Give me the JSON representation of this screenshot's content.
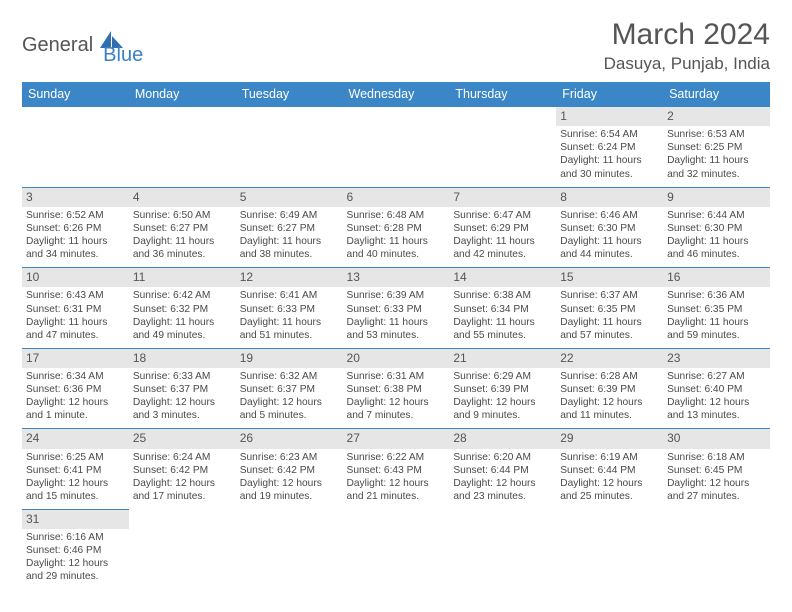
{
  "brand": {
    "word1": "General",
    "word2": "Blue"
  },
  "title": "March 2024",
  "location": "Dasuya, Punjab, India",
  "colors": {
    "header_bg": "#3b86c7",
    "daynum_bg": "#e6e6e6",
    "text": "#4a4a4a",
    "border": "#3b86c7"
  },
  "dayHeaders": [
    "Sunday",
    "Monday",
    "Tuesday",
    "Wednesday",
    "Thursday",
    "Friday",
    "Saturday"
  ],
  "weeks": [
    [
      null,
      null,
      null,
      null,
      null,
      {
        "n": "1",
        "sunrise": "Sunrise: 6:54 AM",
        "sunset": "Sunset: 6:24 PM",
        "daylight": "Daylight: 11 hours and 30 minutes."
      },
      {
        "n": "2",
        "sunrise": "Sunrise: 6:53 AM",
        "sunset": "Sunset: 6:25 PM",
        "daylight": "Daylight: 11 hours and 32 minutes."
      }
    ],
    [
      {
        "n": "3",
        "sunrise": "Sunrise: 6:52 AM",
        "sunset": "Sunset: 6:26 PM",
        "daylight": "Daylight: 11 hours and 34 minutes."
      },
      {
        "n": "4",
        "sunrise": "Sunrise: 6:50 AM",
        "sunset": "Sunset: 6:27 PM",
        "daylight": "Daylight: 11 hours and 36 minutes."
      },
      {
        "n": "5",
        "sunrise": "Sunrise: 6:49 AM",
        "sunset": "Sunset: 6:27 PM",
        "daylight": "Daylight: 11 hours and 38 minutes."
      },
      {
        "n": "6",
        "sunrise": "Sunrise: 6:48 AM",
        "sunset": "Sunset: 6:28 PM",
        "daylight": "Daylight: 11 hours and 40 minutes."
      },
      {
        "n": "7",
        "sunrise": "Sunrise: 6:47 AM",
        "sunset": "Sunset: 6:29 PM",
        "daylight": "Daylight: 11 hours and 42 minutes."
      },
      {
        "n": "8",
        "sunrise": "Sunrise: 6:46 AM",
        "sunset": "Sunset: 6:30 PM",
        "daylight": "Daylight: 11 hours and 44 minutes."
      },
      {
        "n": "9",
        "sunrise": "Sunrise: 6:44 AM",
        "sunset": "Sunset: 6:30 PM",
        "daylight": "Daylight: 11 hours and 46 minutes."
      }
    ],
    [
      {
        "n": "10",
        "sunrise": "Sunrise: 6:43 AM",
        "sunset": "Sunset: 6:31 PM",
        "daylight": "Daylight: 11 hours and 47 minutes."
      },
      {
        "n": "11",
        "sunrise": "Sunrise: 6:42 AM",
        "sunset": "Sunset: 6:32 PM",
        "daylight": "Daylight: 11 hours and 49 minutes."
      },
      {
        "n": "12",
        "sunrise": "Sunrise: 6:41 AM",
        "sunset": "Sunset: 6:33 PM",
        "daylight": "Daylight: 11 hours and 51 minutes."
      },
      {
        "n": "13",
        "sunrise": "Sunrise: 6:39 AM",
        "sunset": "Sunset: 6:33 PM",
        "daylight": "Daylight: 11 hours and 53 minutes."
      },
      {
        "n": "14",
        "sunrise": "Sunrise: 6:38 AM",
        "sunset": "Sunset: 6:34 PM",
        "daylight": "Daylight: 11 hours and 55 minutes."
      },
      {
        "n": "15",
        "sunrise": "Sunrise: 6:37 AM",
        "sunset": "Sunset: 6:35 PM",
        "daylight": "Daylight: 11 hours and 57 minutes."
      },
      {
        "n": "16",
        "sunrise": "Sunrise: 6:36 AM",
        "sunset": "Sunset: 6:35 PM",
        "daylight": "Daylight: 11 hours and 59 minutes."
      }
    ],
    [
      {
        "n": "17",
        "sunrise": "Sunrise: 6:34 AM",
        "sunset": "Sunset: 6:36 PM",
        "daylight": "Daylight: 12 hours and 1 minute."
      },
      {
        "n": "18",
        "sunrise": "Sunrise: 6:33 AM",
        "sunset": "Sunset: 6:37 PM",
        "daylight": "Daylight: 12 hours and 3 minutes."
      },
      {
        "n": "19",
        "sunrise": "Sunrise: 6:32 AM",
        "sunset": "Sunset: 6:37 PM",
        "daylight": "Daylight: 12 hours and 5 minutes."
      },
      {
        "n": "20",
        "sunrise": "Sunrise: 6:31 AM",
        "sunset": "Sunset: 6:38 PM",
        "daylight": "Daylight: 12 hours and 7 minutes."
      },
      {
        "n": "21",
        "sunrise": "Sunrise: 6:29 AM",
        "sunset": "Sunset: 6:39 PM",
        "daylight": "Daylight: 12 hours and 9 minutes."
      },
      {
        "n": "22",
        "sunrise": "Sunrise: 6:28 AM",
        "sunset": "Sunset: 6:39 PM",
        "daylight": "Daylight: 12 hours and 11 minutes."
      },
      {
        "n": "23",
        "sunrise": "Sunrise: 6:27 AM",
        "sunset": "Sunset: 6:40 PM",
        "daylight": "Daylight: 12 hours and 13 minutes."
      }
    ],
    [
      {
        "n": "24",
        "sunrise": "Sunrise: 6:25 AM",
        "sunset": "Sunset: 6:41 PM",
        "daylight": "Daylight: 12 hours and 15 minutes."
      },
      {
        "n": "25",
        "sunrise": "Sunrise: 6:24 AM",
        "sunset": "Sunset: 6:42 PM",
        "daylight": "Daylight: 12 hours and 17 minutes."
      },
      {
        "n": "26",
        "sunrise": "Sunrise: 6:23 AM",
        "sunset": "Sunset: 6:42 PM",
        "daylight": "Daylight: 12 hours and 19 minutes."
      },
      {
        "n": "27",
        "sunrise": "Sunrise: 6:22 AM",
        "sunset": "Sunset: 6:43 PM",
        "daylight": "Daylight: 12 hours and 21 minutes."
      },
      {
        "n": "28",
        "sunrise": "Sunrise: 6:20 AM",
        "sunset": "Sunset: 6:44 PM",
        "daylight": "Daylight: 12 hours and 23 minutes."
      },
      {
        "n": "29",
        "sunrise": "Sunrise: 6:19 AM",
        "sunset": "Sunset: 6:44 PM",
        "daylight": "Daylight: 12 hours and 25 minutes."
      },
      {
        "n": "30",
        "sunrise": "Sunrise: 6:18 AM",
        "sunset": "Sunset: 6:45 PM",
        "daylight": "Daylight: 12 hours and 27 minutes."
      }
    ],
    [
      {
        "n": "31",
        "sunrise": "Sunrise: 6:16 AM",
        "sunset": "Sunset: 6:46 PM",
        "daylight": "Daylight: 12 hours and 29 minutes."
      },
      null,
      null,
      null,
      null,
      null,
      null
    ]
  ]
}
